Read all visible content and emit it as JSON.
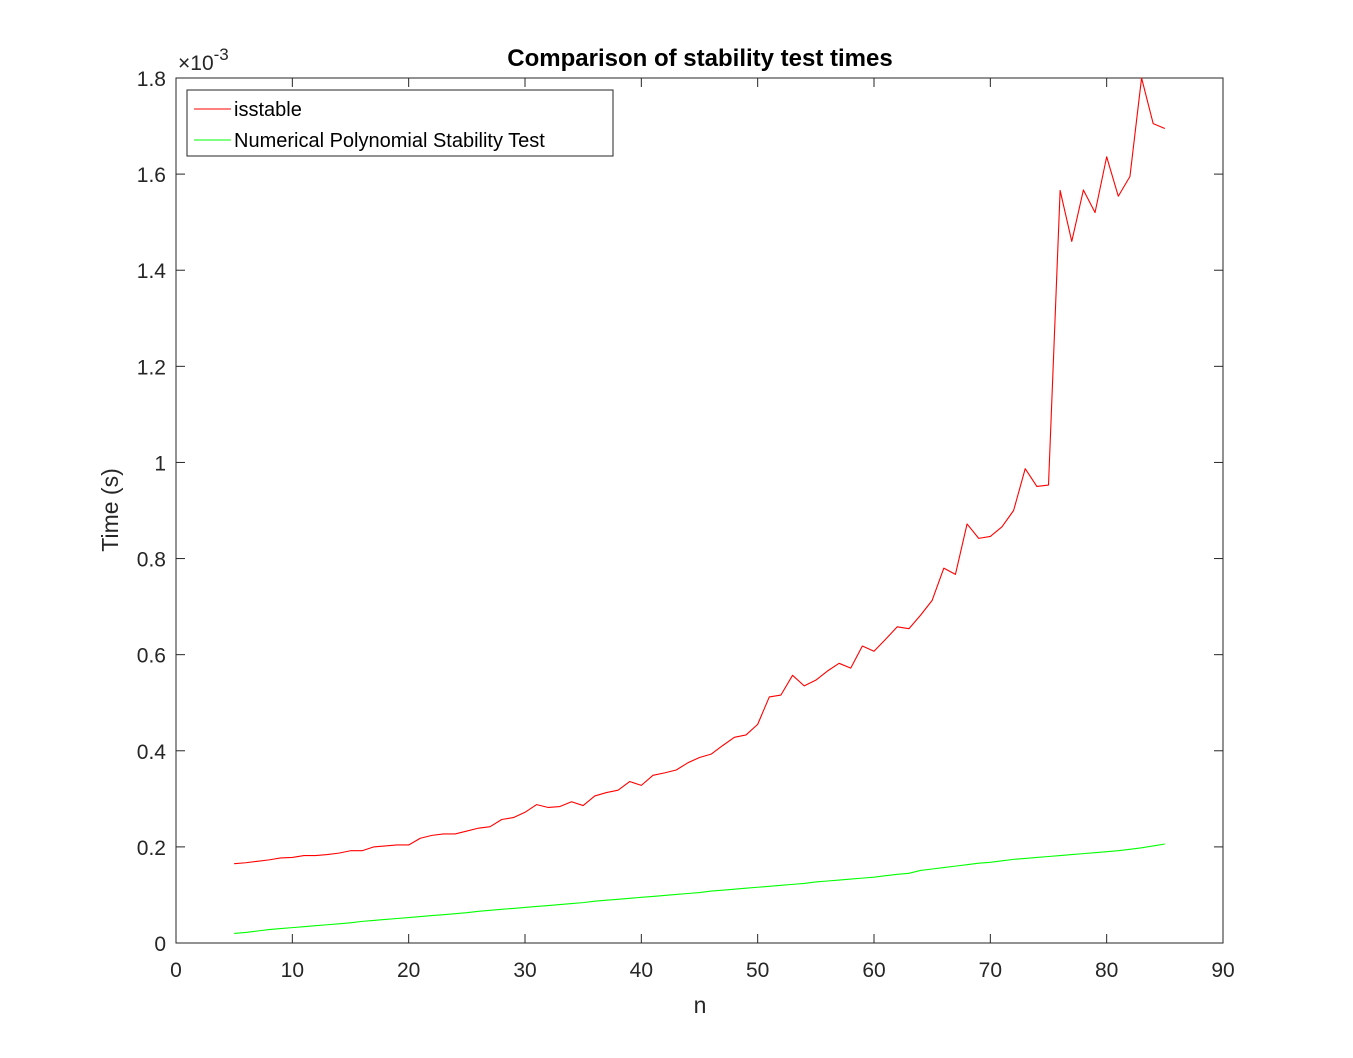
{
  "chart_data": {
    "type": "line",
    "title": "Comparison of stability test times",
    "xlabel": "n",
    "ylabel": "Time (s)",
    "y_exponent_base": "×10",
    "y_exponent_power": "-3",
    "xlim": [
      0,
      90
    ],
    "ylim": [
      0,
      1.8
    ],
    "xticks": [
      "0",
      "10",
      "20",
      "30",
      "40",
      "50",
      "60",
      "70",
      "80",
      "90"
    ],
    "yticks": [
      "0",
      "0.2",
      "0.4",
      "0.6",
      "0.8",
      "1",
      "1.2",
      "1.4",
      "1.6",
      "1.8"
    ],
    "grid": false,
    "legend_position": "top-left",
    "x": [
      5,
      6,
      7,
      8,
      9,
      10,
      11,
      12,
      13,
      14,
      15,
      16,
      17,
      18,
      19,
      20,
      21,
      22,
      23,
      24,
      25,
      26,
      27,
      28,
      29,
      30,
      31,
      32,
      33,
      34,
      35,
      36,
      37,
      38,
      39,
      40,
      41,
      42,
      43,
      44,
      45,
      46,
      47,
      48,
      49,
      50,
      51,
      52,
      53,
      54,
      55,
      56,
      57,
      58,
      59,
      60,
      61,
      62,
      63,
      64,
      65,
      66,
      67,
      68,
      69,
      70,
      71,
      72,
      73,
      74,
      75,
      76,
      77,
      78,
      79,
      80,
      81,
      82,
      83,
      84,
      85
    ],
    "series": [
      {
        "name": "isstable",
        "color": "#ff0000",
        "values": [
          0.165,
          0.167,
          0.17,
          0.173,
          0.177,
          0.178,
          0.182,
          0.182,
          0.184,
          0.187,
          0.192,
          0.192,
          0.2,
          0.202,
          0.204,
          0.204,
          0.218,
          0.224,
          0.227,
          0.227,
          0.233,
          0.239,
          0.242,
          0.257,
          0.261,
          0.272,
          0.288,
          0.282,
          0.284,
          0.294,
          0.286,
          0.306,
          0.313,
          0.318,
          0.336,
          0.328,
          0.349,
          0.354,
          0.36,
          0.375,
          0.386,
          0.393,
          0.411,
          0.428,
          0.433,
          0.455,
          0.512,
          0.516,
          0.557,
          0.535,
          0.547,
          0.566,
          0.582,
          0.572,
          0.618,
          0.607,
          0.632,
          0.658,
          0.654,
          0.682,
          0.713,
          0.78,
          0.767,
          0.872,
          0.842,
          0.846,
          0.866,
          0.9,
          0.987,
          0.95,
          0.953,
          1.566,
          1.46,
          1.567,
          1.52,
          1.636,
          1.554,
          1.595,
          1.8,
          1.705,
          1.695
        ]
      },
      {
        "name": "Numerical Polynomial Stability Test",
        "color": "#00ff00",
        "values": [
          0.02,
          0.022,
          0.025,
          0.028,
          0.03,
          0.032,
          0.034,
          0.036,
          0.038,
          0.04,
          0.042,
          0.045,
          0.047,
          0.049,
          0.051,
          0.053,
          0.055,
          0.057,
          0.059,
          0.061,
          0.063,
          0.066,
          0.068,
          0.07,
          0.072,
          0.074,
          0.076,
          0.078,
          0.08,
          0.082,
          0.084,
          0.087,
          0.089,
          0.091,
          0.093,
          0.095,
          0.097,
          0.099,
          0.101,
          0.103,
          0.105,
          0.108,
          0.11,
          0.112,
          0.114,
          0.116,
          0.118,
          0.12,
          0.122,
          0.124,
          0.127,
          0.129,
          0.131,
          0.133,
          0.135,
          0.137,
          0.14,
          0.143,
          0.145,
          0.151,
          0.154,
          0.157,
          0.16,
          0.163,
          0.166,
          0.168,
          0.171,
          0.174,
          0.176,
          0.178,
          0.18,
          0.182,
          0.184,
          0.186,
          0.188,
          0.19,
          0.192,
          0.195,
          0.198,
          0.202,
          0.206
        ]
      }
    ]
  }
}
